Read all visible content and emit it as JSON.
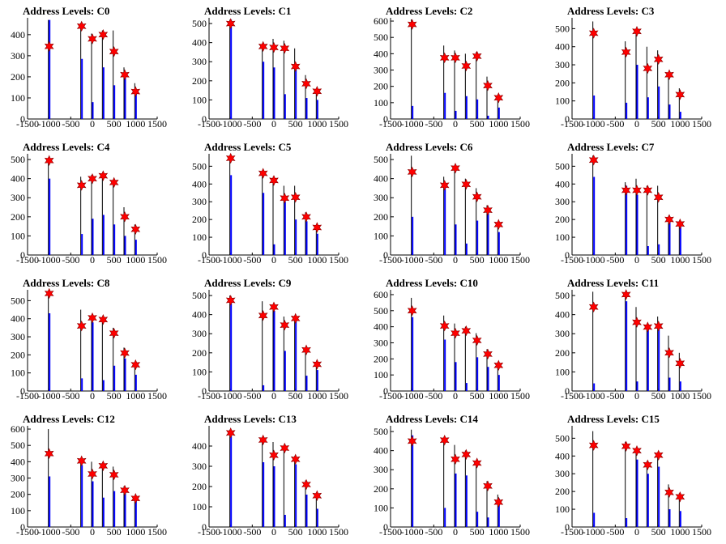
{
  "figure": {
    "colors": {
      "axes": "#000000",
      "black_bar": "#000000",
      "blue_bar": "#0000ff",
      "star": "#ff0000",
      "star_edge": "#8b0000"
    }
  },
  "chart_data": [
    {
      "type": "bar",
      "title": "Address Levels: C0",
      "xlim": [
        -1500,
        1500
      ],
      "ylim": [
        0,
        480
      ],
      "xticks": [
        "-1500",
        "-1000",
        "-500",
        "0",
        "500",
        "1000",
        "1500"
      ],
      "yticks": [
        "0",
        "100",
        "200",
        "300",
        "400"
      ],
      "x": [
        -1000,
        -250,
        0,
        250,
        500,
        750,
        1000
      ],
      "series": [
        {
          "role": "black",
          "values": [
            470,
            455,
            405,
            420,
            420,
            245,
            170
          ]
        },
        {
          "role": "blue",
          "values": [
            470,
            285,
            80,
            245,
            160,
            200,
            120
          ]
        },
        {
          "role": "star",
          "values": [
            345,
            440,
            380,
            400,
            320,
            210,
            130
          ]
        }
      ]
    },
    {
      "type": "bar",
      "title": "Address Levels: C1",
      "xlim": [
        -1500,
        1500
      ],
      "ylim": [
        0,
        530
      ],
      "xticks": [
        "-1500",
        "-1000",
        "-500",
        "0",
        "500",
        "1000",
        "1500"
      ],
      "yticks": [
        "0",
        "100",
        "200",
        "300",
        "400",
        "500"
      ],
      "x": [
        -1000,
        -250,
        0,
        250,
        500,
        750,
        1000
      ],
      "series": [
        {
          "role": "black",
          "values": [
            520,
            390,
            420,
            410,
            370,
            230,
            160
          ]
        },
        {
          "role": "blue",
          "values": [
            520,
            300,
            270,
            130,
            260,
            110,
            100
          ]
        },
        {
          "role": "star",
          "values": [
            500,
            380,
            375,
            370,
            275,
            185,
            145
          ]
        }
      ]
    },
    {
      "type": "bar",
      "title": "Address Levels: C2",
      "xlim": [
        -1500,
        1500
      ],
      "ylim": [
        0,
        620
      ],
      "xticks": [
        "-1500",
        "-1000",
        "-500",
        "0",
        "500",
        "1000",
        "1500"
      ],
      "yticks": [
        "0",
        "100",
        "200",
        "300",
        "400",
        "500",
        "600"
      ],
      "x": [
        -1000,
        -250,
        0,
        250,
        500,
        750,
        1000
      ],
      "series": [
        {
          "role": "black",
          "values": [
            610,
            450,
            420,
            400,
            410,
            260,
            150
          ]
        },
        {
          "role": "blue",
          "values": [
            80,
            160,
            50,
            140,
            120,
            20,
            70
          ]
        },
        {
          "role": "star",
          "values": [
            580,
            375,
            375,
            325,
            385,
            205,
            130
          ]
        }
      ]
    },
    {
      "type": "bar",
      "title": "Address Levels: C3",
      "xlim": [
        -1500,
        1500
      ],
      "ylim": [
        0,
        560
      ],
      "xticks": [
        "-1500",
        "-1000",
        "-500",
        "0",
        "500",
        "1000",
        "1500"
      ],
      "yticks": [
        "0",
        "100",
        "200",
        "300",
        "400",
        "500"
      ],
      "x": [
        -1000,
        -250,
        0,
        250,
        500,
        750,
        1000
      ],
      "series": [
        {
          "role": "black",
          "values": [
            540,
            430,
            490,
            400,
            380,
            260,
            170
          ]
        },
        {
          "role": "blue",
          "values": [
            130,
            90,
            300,
            120,
            180,
            80,
            40
          ]
        },
        {
          "role": "star",
          "values": [
            475,
            370,
            485,
            280,
            330,
            245,
            135
          ]
        }
      ]
    },
    {
      "type": "bar",
      "title": "Address Levels: C4",
      "xlim": [
        -1500,
        1500
      ],
      "ylim": [
        0,
        530
      ],
      "xticks": [
        "-1500",
        "-1000",
        "-500",
        "0",
        "500",
        "1000",
        "1500"
      ],
      "yticks": [
        "0",
        "100",
        "200",
        "300",
        "400",
        "500"
      ],
      "x": [
        -1000,
        -250,
        0,
        250,
        500,
        750,
        1000
      ],
      "series": [
        {
          "role": "black",
          "values": [
            510,
            410,
            420,
            420,
            390,
            250,
            160
          ]
        },
        {
          "role": "blue",
          "values": [
            400,
            110,
            190,
            210,
            160,
            100,
            80
          ]
        },
        {
          "role": "star",
          "values": [
            495,
            365,
            400,
            415,
            380,
            200,
            135
          ]
        }
      ]
    },
    {
      "type": "bar",
      "title": "Address Levels: C5",
      "xlim": [
        -1500,
        1500
      ],
      "ylim": [
        0,
        570
      ],
      "xticks": [
        "-1500",
        "-1000",
        "-500",
        "0",
        "500",
        "1000",
        "1500"
      ],
      "yticks": [
        "0",
        "100",
        "200",
        "300",
        "400",
        "500"
      ],
      "x": [
        -1000,
        -250,
        0,
        250,
        500,
        750,
        1000
      ],
      "series": [
        {
          "role": "black",
          "values": [
            550,
            470,
            440,
            390,
            390,
            240,
            170
          ]
        },
        {
          "role": "blue",
          "values": [
            450,
            350,
            60,
            300,
            200,
            190,
            120
          ]
        },
        {
          "role": "star",
          "values": [
            545,
            460,
            420,
            320,
            325,
            215,
            155
          ]
        }
      ]
    },
    {
      "type": "bar",
      "title": "Address Levels: C6",
      "xlim": [
        -1500,
        1500
      ],
      "ylim": [
        0,
        530
      ],
      "xticks": [
        "-1500",
        "-1000",
        "-500",
        "0",
        "500",
        "1000",
        "1500"
      ],
      "yticks": [
        "0",
        "100",
        "200",
        "300",
        "400",
        "500"
      ],
      "x": [
        -1000,
        -250,
        0,
        250,
        500,
        750,
        1000
      ],
      "series": [
        {
          "role": "black",
          "values": [
            520,
            410,
            460,
            400,
            350,
            260,
            170
          ]
        },
        {
          "role": "blue",
          "values": [
            200,
            360,
            160,
            60,
            180,
            220,
            120
          ]
        },
        {
          "role": "star",
          "values": [
            435,
            365,
            455,
            370,
            305,
            235,
            160
          ]
        }
      ]
    },
    {
      "type": "bar",
      "title": "Address Levels: C7",
      "xlim": [
        -1500,
        1500
      ],
      "ylim": [
        0,
        570
      ],
      "xticks": [
        "-1500",
        "-1000",
        "-500",
        "0",
        "500",
        "1000",
        "1500"
      ],
      "yticks": [
        "0",
        "100",
        "200",
        "300",
        "400",
        "500"
      ],
      "x": [
        -1000,
        -250,
        0,
        250,
        500,
        750,
        1000
      ],
      "series": [
        {
          "role": "black",
          "values": [
            560,
            410,
            430,
            390,
            390,
            220,
            190
          ]
        },
        {
          "role": "blue",
          "values": [
            440,
            390,
            340,
            50,
            60,
            190,
            160
          ]
        },
        {
          "role": "star",
          "values": [
            535,
            365,
            365,
            365,
            325,
            200,
            175
          ]
        }
      ]
    },
    {
      "type": "bar",
      "title": "Address Levels: C8",
      "xlim": [
        -1500,
        1500
      ],
      "ylim": [
        0,
        560
      ],
      "xticks": [
        "-1500",
        "-1000",
        "-500",
        "0",
        "500",
        "1000",
        "1500"
      ],
      "yticks": [
        "0",
        "100",
        "200",
        "300",
        "400",
        "500"
      ],
      "x": [
        -1000,
        -250,
        0,
        250,
        500,
        750,
        1000
      ],
      "series": [
        {
          "role": "black",
          "values": [
            545,
            450,
            420,
            410,
            350,
            240,
            160
          ]
        },
        {
          "role": "blue",
          "values": [
            430,
            70,
            380,
            60,
            140,
            180,
            90
          ]
        },
        {
          "role": "star",
          "values": [
            540,
            360,
            405,
            395,
            320,
            210,
            145
          ]
        }
      ]
    },
    {
      "type": "bar",
      "title": "Address Levels: C9",
      "xlim": [
        -1500,
        1500
      ],
      "ylim": [
        0,
        530
      ],
      "xticks": [
        "-1500",
        "-1000",
        "-500",
        "0",
        "500",
        "1000",
        "1500"
      ],
      "yticks": [
        "0",
        "100",
        "200",
        "300",
        "400",
        "500"
      ],
      "x": [
        -1000,
        -250,
        0,
        250,
        500,
        750,
        1000
      ],
      "series": [
        {
          "role": "black",
          "values": [
            500,
            470,
            440,
            390,
            390,
            230,
            150
          ]
        },
        {
          "role": "blue",
          "values": [
            460,
            30,
            420,
            210,
            370,
            80,
            110
          ]
        },
        {
          "role": "star",
          "values": [
            475,
            395,
            440,
            345,
            380,
            215,
            140
          ]
        }
      ]
    },
    {
      "type": "bar",
      "title": "Address Levels: C10",
      "xlim": [
        -1500,
        1500
      ],
      "ylim": [
        0,
        630
      ],
      "xticks": [
        "-1500",
        "-1000",
        "-500",
        "0",
        "500",
        "1000",
        "1500"
      ],
      "yticks": [
        "0",
        "100",
        "200",
        "300",
        "400",
        "500",
        "600"
      ],
      "x": [
        -1000,
        -250,
        0,
        250,
        500,
        750,
        1000
      ],
      "series": [
        {
          "role": "black",
          "values": [
            580,
            470,
            420,
            400,
            360,
            260,
            180
          ]
        },
        {
          "role": "blue",
          "values": [
            460,
            320,
            180,
            50,
            210,
            150,
            100
          ]
        },
        {
          "role": "star",
          "values": [
            500,
            405,
            360,
            375,
            315,
            230,
            160
          ]
        }
      ]
    },
    {
      "type": "bar",
      "title": "Address Levels: C11",
      "xlim": [
        -1500,
        1500
      ],
      "ylim": [
        0,
        530
      ],
      "xticks": [
        "-1500",
        "-1000",
        "-500",
        "0",
        "500",
        "1000",
        "1500"
      ],
      "yticks": [
        "0",
        "100",
        "200",
        "300",
        "400",
        "500"
      ],
      "x": [
        -1000,
        -250,
        0,
        250,
        500,
        750,
        1000
      ],
      "series": [
        {
          "role": "black",
          "values": [
            520,
            510,
            440,
            350,
            390,
            290,
            200
          ]
        },
        {
          "role": "blue",
          "values": [
            40,
            470,
            50,
            320,
            330,
            70,
            50
          ]
        },
        {
          "role": "star",
          "values": [
            440,
            505,
            360,
            335,
            340,
            200,
            145
          ]
        }
      ]
    },
    {
      "type": "bar",
      "title": "Address Levels: C12",
      "xlim": [
        -1500,
        1500
      ],
      "ylim": [
        0,
        620
      ],
      "xticks": [
        "-1500",
        "-1000",
        "-500",
        "0",
        "500",
        "1000",
        "1500"
      ],
      "yticks": [
        "0",
        "100",
        "200",
        "300",
        "400",
        "500",
        "600"
      ],
      "x": [
        -1000,
        -250,
        0,
        250,
        500,
        750,
        1000
      ],
      "series": [
        {
          "role": "black",
          "values": [
            600,
            410,
            400,
            380,
            370,
            250,
            190
          ]
        },
        {
          "role": "blue",
          "values": [
            310,
            380,
            280,
            180,
            220,
            210,
            170
          ]
        },
        {
          "role": "star",
          "values": [
            450,
            405,
            325,
            375,
            320,
            225,
            175
          ]
        }
      ]
    },
    {
      "type": "bar",
      "title": "Address Levels: C13",
      "xlim": [
        -1500,
        1500
      ],
      "ylim": [
        0,
        500
      ],
      "xticks": [
        "-1500",
        "-1000",
        "-500",
        "0",
        "500",
        "1000",
        "1500"
      ],
      "yticks": [
        "0",
        "100",
        "200",
        "300",
        "400"
      ],
      "x": [
        -1000,
        -250,
        0,
        250,
        500,
        750,
        1000
      ],
      "series": [
        {
          "role": "black",
          "values": [
            480,
            440,
            420,
            400,
            350,
            230,
            170
          ]
        },
        {
          "role": "blue",
          "values": [
            450,
            320,
            300,
            60,
            310,
            160,
            90
          ]
        },
        {
          "role": "star",
          "values": [
            465,
            430,
            355,
            390,
            335,
            210,
            155
          ]
        }
      ]
    },
    {
      "type": "bar",
      "title": "Address Levels: C14",
      "xlim": [
        -1500,
        1500
      ],
      "ylim": [
        0,
        530
      ],
      "xticks": [
        "-1500",
        "-1000",
        "-500",
        "0",
        "500",
        "1000",
        "1500"
      ],
      "yticks": [
        "0",
        "100",
        "200",
        "300",
        "400",
        "500"
      ],
      "x": [
        -1000,
        -250,
        0,
        250,
        500,
        750,
        1000
      ],
      "series": [
        {
          "role": "black",
          "values": [
            510,
            450,
            430,
            400,
            350,
            240,
            170
          ]
        },
        {
          "role": "blue",
          "values": [
            480,
            100,
            280,
            270,
            80,
            50,
            150
          ]
        },
        {
          "role": "star",
          "values": [
            450,
            455,
            355,
            380,
            335,
            215,
            130
          ]
        }
      ]
    },
    {
      "type": "bar",
      "title": "Address Levels: C15",
      "xlim": [
        -1500,
        1500
      ],
      "ylim": [
        0,
        570
      ],
      "xticks": [
        "-1500",
        "-1000",
        "-500",
        "0",
        "500",
        "1000",
        "1500"
      ],
      "yticks": [
        "0",
        "100",
        "200",
        "300",
        "400",
        "500"
      ],
      "x": [
        -1000,
        -250,
        0,
        250,
        500,
        750,
        1000
      ],
      "series": [
        {
          "role": "black",
          "values": [
            540,
            480,
            420,
            370,
            410,
            240,
            190
          ]
        },
        {
          "role": "blue",
          "values": [
            80,
            50,
            380,
            300,
            340,
            100,
            90
          ]
        },
        {
          "role": "star",
          "values": [
            460,
            455,
            430,
            350,
            405,
            195,
            170
          ]
        }
      ]
    }
  ]
}
